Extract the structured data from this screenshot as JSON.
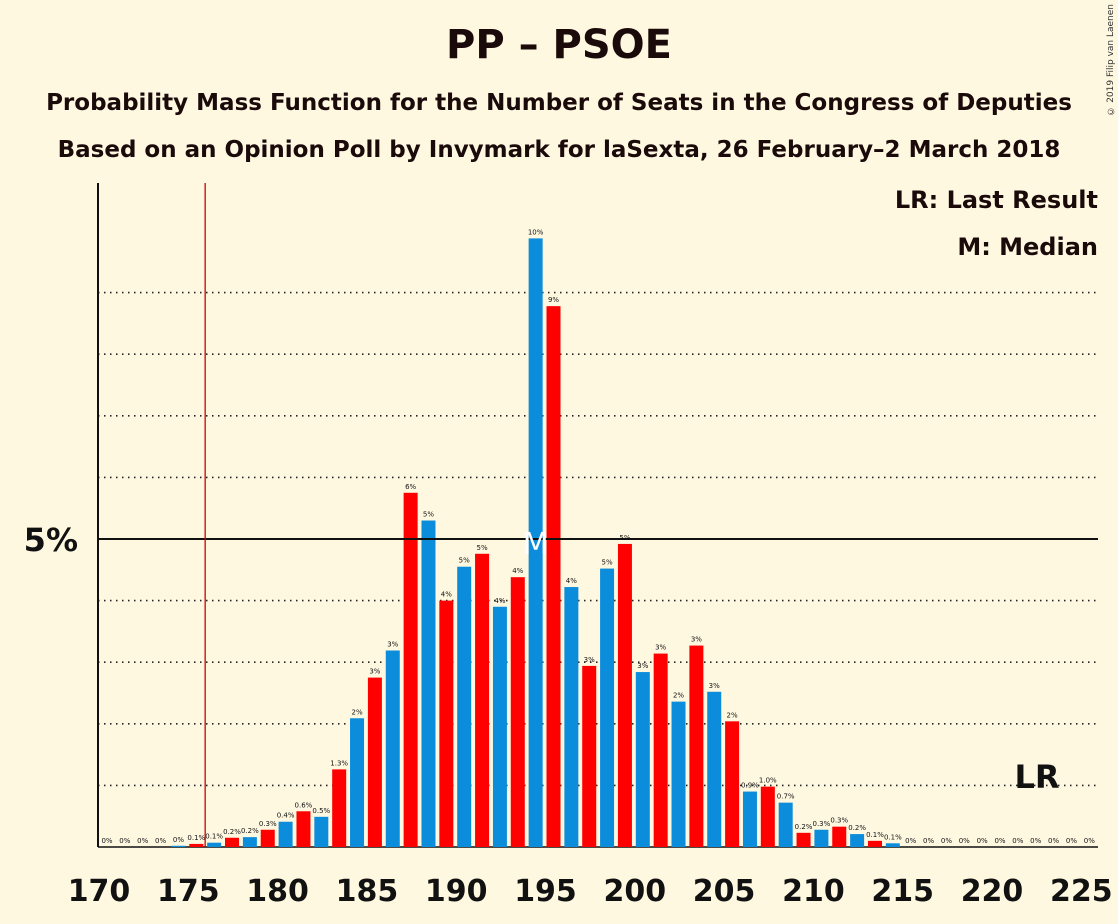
{
  "header": {
    "title": "PP – PSOE",
    "subtitle1": "Probability Mass Function for the Number of Seats in the Congress of Deputies",
    "subtitle2": "Based on an Opinion Poll by Invymark for laSexta, 26 February–2 March 2018",
    "copyright": "© 2019 Filip van Laenen"
  },
  "legend": {
    "last_result": "LR: Last Result",
    "median": "M: Median"
  },
  "colors": {
    "blue": "#0b8ddc",
    "red": "#ff0000",
    "background": "#fff8e1",
    "lr_line": "#cc0000"
  },
  "chart_data": {
    "type": "bar",
    "xlabel": "",
    "ylabel": "",
    "ylim": [
      0,
      10.4
    ],
    "y_tick_label": "5%",
    "y_tick_value": 5,
    "x_ticks": [
      170,
      175,
      180,
      185,
      190,
      195,
      200,
      205,
      210,
      215,
      220,
      225
    ],
    "last_result_x": 176,
    "last_result_label": "LR",
    "median_x": 194,
    "median_label": "M",
    "grid": "dotted horizontal",
    "bars": [
      {
        "x": 170,
        "value": 0.0,
        "label": "0%"
      },
      {
        "x": 171,
        "value": 0.0,
        "label": "0%"
      },
      {
        "x": 172,
        "value": 0.0,
        "label": "0%"
      },
      {
        "x": 173,
        "value": 0.0,
        "label": "0%"
      },
      {
        "x": 174,
        "value": 0.02,
        "label": "0%"
      },
      {
        "x": 175,
        "value": 0.05,
        "label": "0.1%"
      },
      {
        "x": 176,
        "value": 0.07,
        "label": "0.1%"
      },
      {
        "x": 177,
        "value": 0.15,
        "label": "0.2%"
      },
      {
        "x": 178,
        "value": 0.16,
        "label": "0.2%"
      },
      {
        "x": 179,
        "value": 0.28,
        "label": "0.3%"
      },
      {
        "x": 180,
        "value": 0.41,
        "label": "0.4%"
      },
      {
        "x": 181,
        "value": 0.58,
        "label": "0.6%"
      },
      {
        "x": 182,
        "value": 0.49,
        "label": "0.5%"
      },
      {
        "x": 183,
        "value": 1.26,
        "label": "1.3%"
      },
      {
        "x": 184,
        "value": 2.09,
        "label": "2%"
      },
      {
        "x": 185,
        "value": 2.75,
        "label": "3%"
      },
      {
        "x": 186,
        "value": 3.19,
        "label": "3%"
      },
      {
        "x": 187,
        "value": 5.75,
        "label": "6%"
      },
      {
        "x": 188,
        "value": 5.3,
        "label": "5%"
      },
      {
        "x": 189,
        "value": 4.0,
        "label": "4%"
      },
      {
        "x": 190,
        "value": 4.55,
        "label": "5%"
      },
      {
        "x": 191,
        "value": 4.76,
        "label": "5%"
      },
      {
        "x": 192,
        "value": 3.9,
        "label": "4%"
      },
      {
        "x": 193,
        "value": 4.38,
        "label": "4%"
      },
      {
        "x": 194,
        "value": 9.88,
        "label": "10%"
      },
      {
        "x": 195,
        "value": 8.78,
        "label": "9%"
      },
      {
        "x": 196,
        "value": 4.22,
        "label": "4%"
      },
      {
        "x": 197,
        "value": 2.94,
        "label": "3%"
      },
      {
        "x": 198,
        "value": 4.52,
        "label": "5%"
      },
      {
        "x": 199,
        "value": 4.92,
        "label": "5%"
      },
      {
        "x": 200,
        "value": 2.84,
        "label": "3%"
      },
      {
        "x": 201,
        "value": 3.14,
        "label": "3%"
      },
      {
        "x": 202,
        "value": 2.36,
        "label": "2%"
      },
      {
        "x": 203,
        "value": 3.27,
        "label": "3%"
      },
      {
        "x": 204,
        "value": 2.52,
        "label": "3%"
      },
      {
        "x": 205,
        "value": 2.04,
        "label": "2%"
      },
      {
        "x": 206,
        "value": 0.9,
        "label": "0.9%"
      },
      {
        "x": 207,
        "value": 0.98,
        "label": "1.0%"
      },
      {
        "x": 208,
        "value": 0.72,
        "label": "0.7%"
      },
      {
        "x": 209,
        "value": 0.23,
        "label": "0.2%"
      },
      {
        "x": 210,
        "value": 0.28,
        "label": "0.3%"
      },
      {
        "x": 211,
        "value": 0.33,
        "label": "0.3%"
      },
      {
        "x": 212,
        "value": 0.21,
        "label": "0.2%"
      },
      {
        "x": 213,
        "value": 0.1,
        "label": "0.1%"
      },
      {
        "x": 214,
        "value": 0.06,
        "label": "0.1%"
      },
      {
        "x": 215,
        "value": 0.0,
        "label": "0%"
      },
      {
        "x": 216,
        "value": 0.0,
        "label": "0%"
      },
      {
        "x": 217,
        "value": 0.0,
        "label": "0%"
      },
      {
        "x": 218,
        "value": 0.0,
        "label": "0%"
      },
      {
        "x": 219,
        "value": 0.0,
        "label": "0%"
      },
      {
        "x": 220,
        "value": 0.0,
        "label": "0%"
      },
      {
        "x": 221,
        "value": 0.0,
        "label": "0%"
      },
      {
        "x": 222,
        "value": 0.0,
        "label": "0%"
      },
      {
        "x": 223,
        "value": 0.0,
        "label": "0%"
      },
      {
        "x": 224,
        "value": 0.0,
        "label": "0%"
      },
      {
        "x": 225,
        "value": 0.0,
        "label": "0%"
      }
    ]
  }
}
